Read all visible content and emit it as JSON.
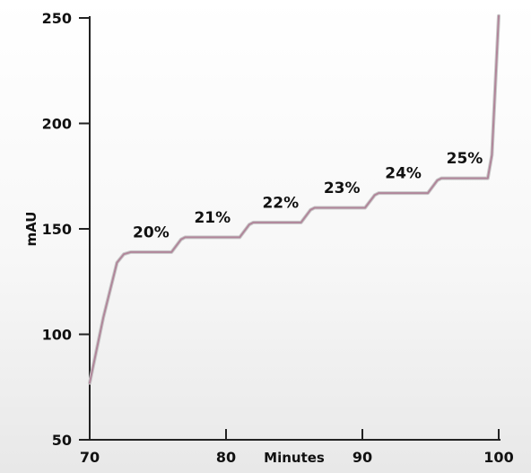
{
  "chart_data": {
    "type": "line",
    "title": "",
    "xlabel": "Minutes",
    "ylabel": "mAU",
    "xlim": [
      70,
      100
    ],
    "ylim": [
      50,
      250
    ],
    "x_ticks": [
      70,
      80,
      90,
      100
    ],
    "y_ticks": [
      50,
      100,
      150,
      200,
      250
    ],
    "grid": false,
    "line_color": "#b0869a",
    "series": [
      {
        "x": [
          70,
          71,
          72,
          72.5,
          73,
          76,
          76.7,
          77,
          81,
          81.7,
          82,
          85.5,
          86.2,
          86.5,
          90.2,
          90.9,
          91.2,
          94.8,
          95.5,
          95.8,
          99.2,
          99.5,
          100
        ],
        "y": [
          77,
          108,
          134,
          138,
          139,
          139,
          145,
          146,
          146,
          152,
          153,
          153,
          159,
          160,
          160,
          166,
          167,
          167,
          173,
          174,
          174,
          185,
          251
        ]
      }
    ],
    "annotations": [
      {
        "text": "20%",
        "x": 74.5,
        "y": 146
      },
      {
        "text": "21%",
        "x": 79,
        "y": 153
      },
      {
        "text": "22%",
        "x": 84,
        "y": 160
      },
      {
        "text": "23%",
        "x": 88.5,
        "y": 167
      },
      {
        "text": "24%",
        "x": 93,
        "y": 174
      },
      {
        "text": "25%",
        "x": 97.5,
        "y": 181
      }
    ]
  }
}
